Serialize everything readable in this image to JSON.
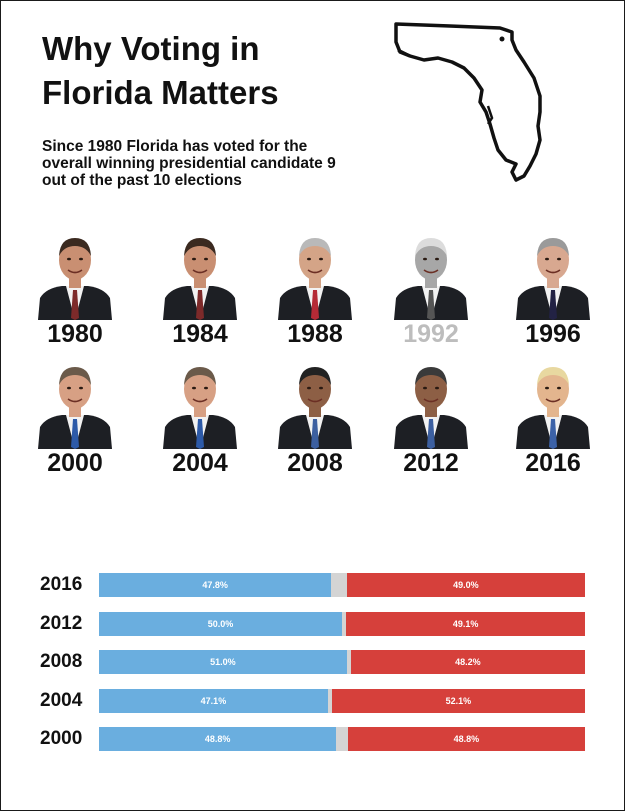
{
  "title": "Why Voting in Florida Matters",
  "subtitle": "Since 1980 Florida has voted for the overall winning presidential candidate 9 out of the past 10 elections",
  "colors": {
    "dem": "#6aaedf",
    "rep": "#d6403b",
    "other": "#d4d4d4",
    "faded_year": "#bdbdbd"
  },
  "presidents": [
    {
      "year": "1980",
      "faded": false
    },
    {
      "year": "1984",
      "faded": false
    },
    {
      "year": "1988",
      "faded": false
    },
    {
      "year": "1992",
      "faded": true
    },
    {
      "year": "1996",
      "faded": false
    },
    {
      "year": "2000",
      "faded": false
    },
    {
      "year": "2004",
      "faded": false
    },
    {
      "year": "2008",
      "faded": false
    },
    {
      "year": "2012",
      "faded": false
    },
    {
      "year": "2016",
      "faded": false
    }
  ],
  "chart_data": {
    "type": "bar",
    "orientation": "horizontal-stacked",
    "categories": [
      "2016",
      "2012",
      "2008",
      "2004",
      "2000"
    ],
    "series": [
      {
        "values": [
          47.8,
          50.0,
          51.0,
          47.1,
          48.8
        ],
        "labels": [
          "47.8%",
          "50.0%",
          "51.0%",
          "47.1%",
          "48.8%"
        ]
      },
      {
        "values": [
          3.2,
          0.9,
          0.8,
          0.8,
          2.4
        ]
      },
      {
        "values": [
          49.0,
          49.1,
          48.2,
          52.1,
          48.8
        ],
        "labels": [
          "49.0%",
          "49.1%",
          "48.2%",
          "52.1%",
          "48.8%"
        ]
      }
    ],
    "xlim": [
      0,
      100
    ]
  }
}
